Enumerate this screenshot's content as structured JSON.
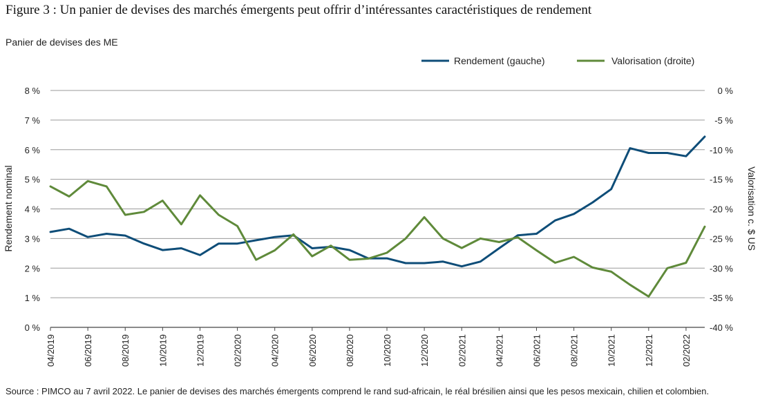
{
  "figure": {
    "title": "Figure 3 : Un panier de devises des marchés émergents peut offrir d’intéressantes caractéristiques de rendement",
    "subtitle": "Panier de devises des ME",
    "source": "Source : PIMCO au 7 avril 2022. Le panier de devises des marchés émergents comprend le rand sud-africain, le réal brésilien ainsi que les pesos mexicain, chilien et colombien."
  },
  "chart_data": {
    "type": "line",
    "title": "Panier de devises des ME",
    "ylabel": "Rendement nominal",
    "y2label": "Valorisation c. $ US",
    "ylim": [
      0,
      8
    ],
    "y2lim": [
      -40,
      0
    ],
    "yticks": [
      "0 %",
      "1 %",
      "2 %",
      "3 %",
      "4 %",
      "5 %",
      "6 %",
      "7 %",
      "8 %"
    ],
    "y2ticks": [
      "-40 %",
      "-35 %",
      "-30 %",
      "-25 %",
      "-20 %",
      "-15 %",
      "-10 %",
      "-5 %",
      "0 %"
    ],
    "xticklabels": [
      "04/2019",
      "06/2019",
      "08/2019",
      "10/2019",
      "12/2019",
      "02/2020",
      "04/2020",
      "06/2020",
      "08/2020",
      "10/2020",
      "12/2020",
      "02/2021",
      "04/2021",
      "06/2021",
      "08/2021",
      "10/2021",
      "12/2021",
      "02/2022"
    ],
    "legend_position": "top-right",
    "grid": true,
    "x": [
      "04/2019",
      "05/2019",
      "06/2019",
      "07/2019",
      "08/2019",
      "09/2019",
      "10/2019",
      "11/2019",
      "12/2019",
      "01/2020",
      "02/2020",
      "03/2020",
      "04/2020",
      "05/2020",
      "06/2020",
      "07/2020",
      "08/2020",
      "09/2020",
      "10/2020",
      "11/2020",
      "12/2020",
      "01/2021",
      "02/2021",
      "03/2021",
      "04/2021",
      "05/2021",
      "06/2021",
      "07/2021",
      "08/2021",
      "09/2021",
      "10/2021",
      "11/2021",
      "12/2021",
      "01/2022",
      "02/2022",
      "03/2022"
    ],
    "series": [
      {
        "name": "Rendement (gauche)",
        "axis": "left",
        "color": "#0e4d78",
        "values": [
          3.22,
          3.33,
          3.05,
          3.16,
          3.1,
          2.83,
          2.61,
          2.67,
          2.44,
          2.83,
          2.83,
          2.94,
          3.05,
          3.11,
          2.67,
          2.72,
          2.61,
          2.33,
          2.33,
          2.17,
          2.17,
          2.22,
          2.06,
          2.22,
          2.67,
          3.11,
          3.16,
          3.61,
          3.83,
          4.22,
          4.67,
          6.05,
          5.89,
          5.89,
          5.78,
          6.44
        ]
      },
      {
        "name": "Valorisation (droite)",
        "axis": "right",
        "color": "#5f8a3a",
        "values": [
          -16.2,
          -17.9,
          -15.3,
          -16.2,
          -21.0,
          -20.5,
          -18.6,
          -22.6,
          -17.7,
          -21.0,
          -22.9,
          -28.6,
          -27.0,
          -24.3,
          -28.0,
          -26.2,
          -28.6,
          -28.4,
          -27.4,
          -25.0,
          -21.4,
          -25.0,
          -26.6,
          -25.0,
          -25.6,
          -24.8,
          -27.0,
          -29.1,
          -28.1,
          -29.9,
          -30.6,
          -32.8,
          -34.8,
          -30.0,
          -29.1,
          -23.0
        ]
      }
    ]
  }
}
